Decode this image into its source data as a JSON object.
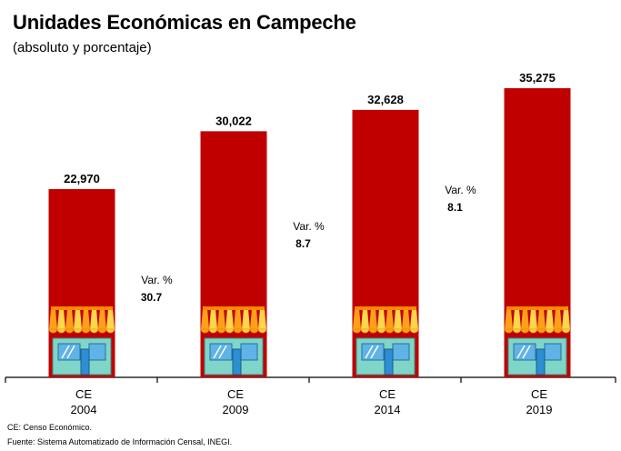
{
  "chart_data": {
    "type": "bar",
    "title": "Unidades Económicas en Campeche",
    "subtitle": "(absoluto y porcentaje)",
    "categories": [
      [
        "CE",
        "2004"
      ],
      [
        "CE",
        "2009"
      ],
      [
        "CE",
        "2014"
      ],
      [
        "CE",
        "2019"
      ]
    ],
    "values": [
      22970,
      30022,
      32628,
      35275
    ],
    "value_labels": [
      "22,970",
      "30,022",
      "32,628",
      "35,275"
    ],
    "variations": [
      {
        "label": "Var. %",
        "value": "30.7"
      },
      {
        "label": "Var. %",
        "value": "8.7"
      },
      {
        "label": "Var. %",
        "value": "8.1"
      }
    ],
    "ylim": [
      0,
      40000
    ],
    "grid": false,
    "legend": "none",
    "bar_color": "#c00000"
  },
  "footnotes": {
    "note": "CE: Censo Económico.",
    "source": "Fuente: Sistema Automatizado de Información Censal, INEGI."
  }
}
